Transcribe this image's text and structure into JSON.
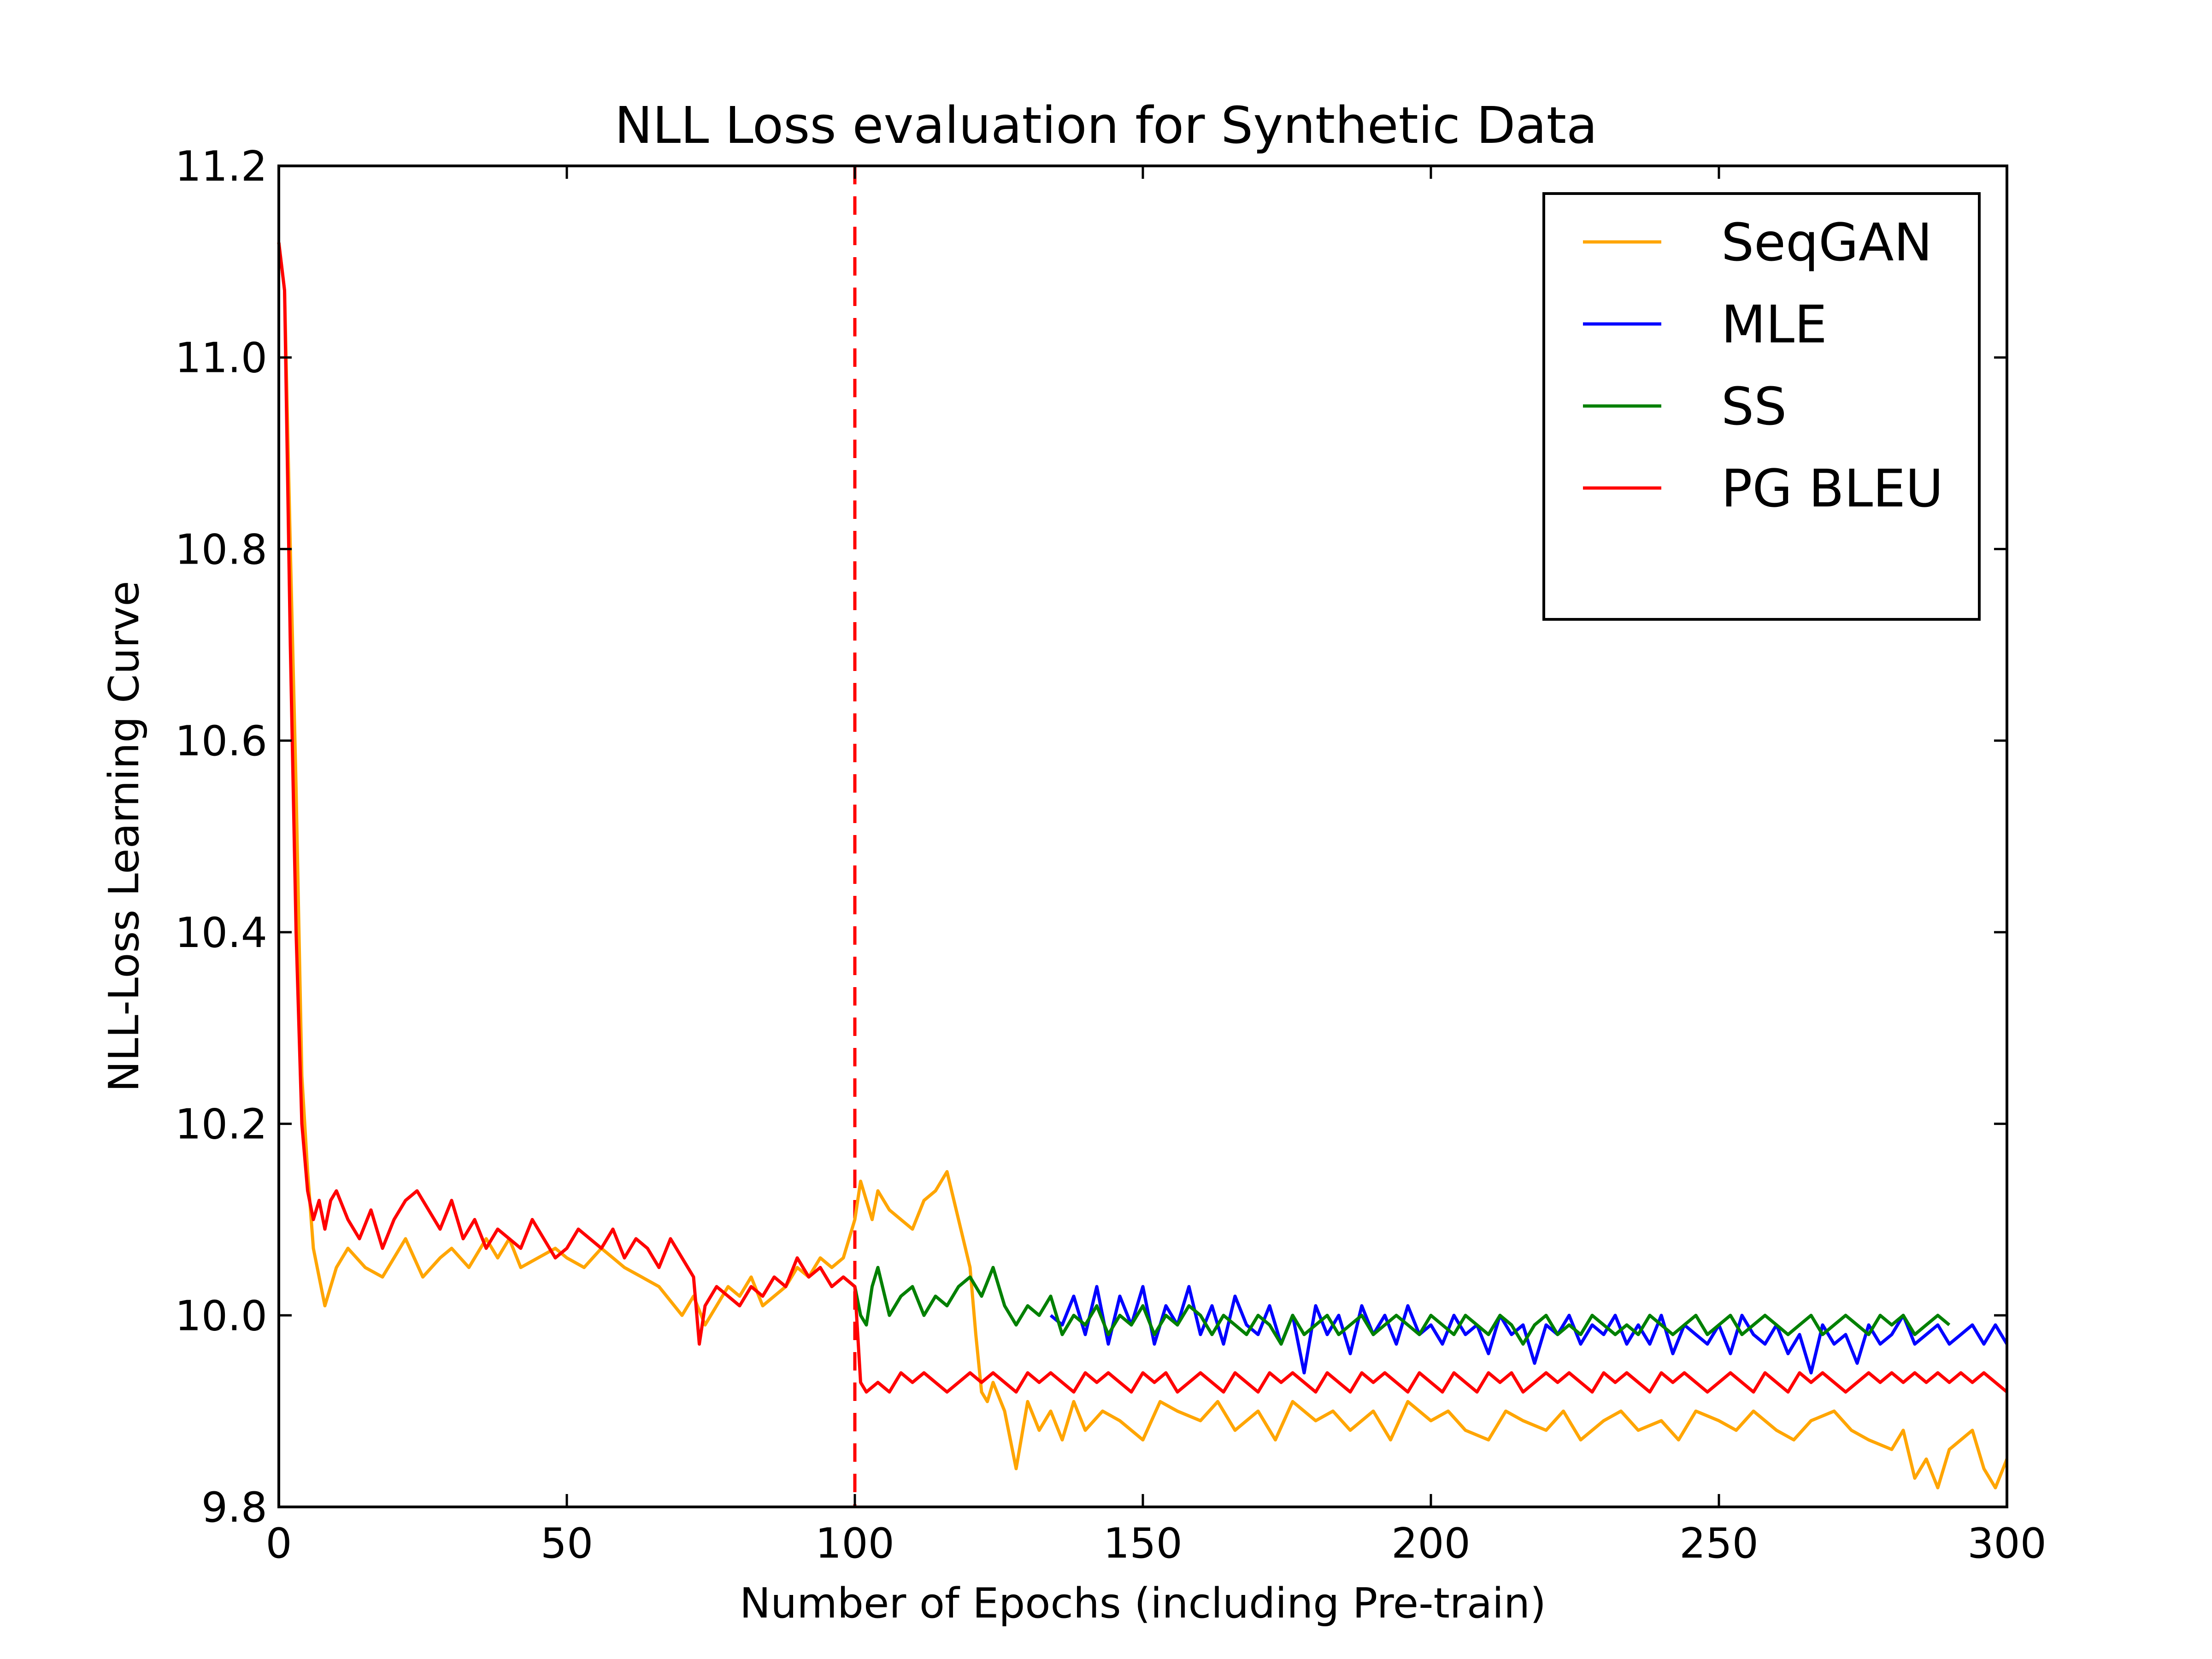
{
  "chart_data": {
    "type": "line",
    "title": "NLL Loss evaluation for Synthetic Data",
    "xlabel": "Number of Epochs (including Pre-train)",
    "ylabel": "NLL-Loss Learning Curve",
    "xlim": [
      0,
      300
    ],
    "ylim": [
      9.8,
      11.2
    ],
    "xticks": [
      0,
      50,
      100,
      150,
      200,
      250,
      300
    ],
    "xtick_labels": [
      "0",
      "50",
      "100",
      "150",
      "200",
      "250",
      "300"
    ],
    "yticks": [
      9.8,
      10.0,
      10.2,
      10.4,
      10.6,
      10.8,
      11.0,
      11.2
    ],
    "ytick_labels": [
      "9.8",
      "10.0",
      "10.2",
      "10.4",
      "10.6",
      "10.8",
      "11.0",
      "11.2"
    ],
    "grid": false,
    "legend_position": "top-right",
    "vline": {
      "x": 100,
      "color": "#ff0000",
      "style": "dashed"
    },
    "series": [
      {
        "name": "SeqGAN",
        "color": "#ffa500",
        "x": [
          0,
          1,
          2,
          3,
          4,
          5,
          6,
          8,
          10,
          12,
          15,
          18,
          20,
          22,
          25,
          28,
          30,
          33,
          36,
          38,
          40,
          42,
          45,
          48,
          50,
          53,
          56,
          58,
          60,
          63,
          66,
          70,
          72,
          74,
          76,
          78,
          80,
          82,
          84,
          86,
          88,
          90,
          92,
          94,
          96,
          98,
          100,
          101,
          102,
          103,
          104,
          106,
          108,
          110,
          112,
          114,
          116,
          118,
          120,
          121,
          122,
          123,
          124,
          126,
          128,
          130,
          132,
          134,
          136,
          138,
          140,
          143,
          146,
          150,
          153,
          156,
          160,
          163,
          166,
          170,
          173,
          176,
          180,
          183,
          186,
          190,
          193,
          196,
          200,
          203,
          206,
          210,
          213,
          216,
          220,
          223,
          226,
          230,
          233,
          236,
          240,
          243,
          246,
          250,
          253,
          256,
          260,
          263,
          266,
          270,
          273,
          276,
          280,
          282,
          284,
          286,
          288,
          290,
          292,
          294,
          296,
          298,
          300
        ],
        "values": [
          11.12,
          11.07,
          10.8,
          10.55,
          10.25,
          10.15,
          10.07,
          10.01,
          10.05,
          10.07,
          10.05,
          10.04,
          10.06,
          10.08,
          10.04,
          10.06,
          10.07,
          10.05,
          10.08,
          10.06,
          10.08,
          10.05,
          10.06,
          10.07,
          10.06,
          10.05,
          10.07,
          10.06,
          10.05,
          10.04,
          10.03,
          10.0,
          10.02,
          9.99,
          10.01,
          10.03,
          10.02,
          10.04,
          10.01,
          10.02,
          10.03,
          10.05,
          10.04,
          10.06,
          10.05,
          10.06,
          10.1,
          10.14,
          10.12,
          10.1,
          10.13,
          10.11,
          10.1,
          10.09,
          10.12,
          10.13,
          10.15,
          10.1,
          10.05,
          9.98,
          9.92,
          9.91,
          9.93,
          9.9,
          9.84,
          9.91,
          9.88,
          9.9,
          9.87,
          9.91,
          9.88,
          9.9,
          9.89,
          9.87,
          9.91,
          9.9,
          9.89,
          9.91,
          9.88,
          9.9,
          9.87,
          9.91,
          9.89,
          9.9,
          9.88,
          9.9,
          9.87,
          9.91,
          9.89,
          9.9,
          9.88,
          9.87,
          9.9,
          9.89,
          9.88,
          9.9,
          9.87,
          9.89,
          9.9,
          9.88,
          9.89,
          9.87,
          9.9,
          9.89,
          9.88,
          9.9,
          9.88,
          9.87,
          9.89,
          9.9,
          9.88,
          9.87,
          9.86,
          9.88,
          9.83,
          9.85,
          9.82,
          9.86,
          9.87,
          9.88,
          9.84,
          9.82,
          9.85
        ]
      },
      {
        "name": "MLE",
        "color": "#0000ff",
        "x": [
          134,
          136,
          138,
          140,
          142,
          144,
          146,
          148,
          150,
          152,
          154,
          156,
          158,
          160,
          162,
          164,
          166,
          168,
          170,
          172,
          174,
          176,
          178,
          180,
          182,
          184,
          186,
          188,
          190,
          192,
          194,
          196,
          198,
          200,
          202,
          204,
          206,
          208,
          210,
          212,
          214,
          216,
          218,
          220,
          222,
          224,
          226,
          228,
          230,
          232,
          234,
          236,
          238,
          240,
          242,
          244,
          246,
          248,
          250,
          252,
          254,
          256,
          258,
          260,
          262,
          264,
          266,
          268,
          270,
          272,
          274,
          276,
          278,
          280,
          282,
          284,
          286,
          288,
          290,
          292,
          294,
          296,
          298,
          300
        ],
        "values": [
          10.0,
          9.99,
          10.02,
          9.98,
          10.03,
          9.97,
          10.02,
          9.99,
          10.03,
          9.97,
          10.01,
          9.99,
          10.03,
          9.98,
          10.01,
          9.97,
          10.02,
          9.99,
          9.98,
          10.01,
          9.97,
          10.0,
          9.94,
          10.01,
          9.98,
          10.0,
          9.96,
          10.01,
          9.98,
          10.0,
          9.97,
          10.01,
          9.98,
          9.99,
          9.97,
          10.0,
          9.98,
          9.99,
          9.96,
          10.0,
          9.98,
          9.99,
          9.95,
          9.99,
          9.98,
          10.0,
          9.97,
          9.99,
          9.98,
          10.0,
          9.97,
          9.99,
          9.97,
          10.0,
          9.96,
          9.99,
          9.98,
          9.97,
          9.99,
          9.96,
          10.0,
          9.98,
          9.97,
          9.99,
          9.96,
          9.98,
          9.94,
          9.99,
          9.97,
          9.98,
          9.95,
          9.99,
          9.97,
          9.98,
          10.0,
          9.97,
          9.98,
          9.99,
          9.97,
          9.98,
          9.99,
          9.97,
          9.99,
          9.97
        ]
      },
      {
        "name": "SS",
        "color": "#008000",
        "x": [
          98,
          100,
          101,
          102,
          103,
          104,
          106,
          108,
          110,
          112,
          114,
          116,
          118,
          120,
          122,
          124,
          126,
          128,
          130,
          132,
          134,
          136,
          138,
          140,
          142,
          144,
          146,
          148,
          150,
          152,
          154,
          156,
          158,
          160,
          162,
          164,
          166,
          168,
          170,
          172,
          174,
          176,
          178,
          180,
          182,
          184,
          186,
          188,
          190,
          192,
          194,
          196,
          198,
          200,
          202,
          204,
          206,
          208,
          210,
          212,
          214,
          216,
          218,
          220,
          222,
          224,
          226,
          228,
          230,
          232,
          234,
          236,
          238,
          240,
          242,
          244,
          246,
          248,
          250,
          252,
          254,
          256,
          258,
          260,
          262,
          264,
          266,
          268,
          270,
          272,
          274,
          276,
          278,
          280,
          282,
          284,
          286,
          288,
          290
        ],
        "values": [
          10.04,
          10.03,
          10.0,
          9.99,
          10.03,
          10.05,
          10.0,
          10.02,
          10.03,
          10.0,
          10.02,
          10.01,
          10.03,
          10.04,
          10.02,
          10.05,
          10.01,
          9.99,
          10.01,
          10.0,
          10.02,
          9.98,
          10.0,
          9.99,
          10.01,
          9.98,
          10.0,
          9.99,
          10.01,
          9.98,
          10.0,
          9.99,
          10.01,
          10.0,
          9.98,
          10.0,
          9.99,
          9.98,
          10.0,
          9.99,
          9.97,
          10.0,
          9.98,
          9.99,
          10.0,
          9.98,
          9.99,
          10.0,
          9.98,
          9.99,
          10.0,
          9.99,
          9.98,
          10.0,
          9.99,
          9.98,
          10.0,
          9.99,
          9.98,
          10.0,
          9.99,
          9.97,
          9.99,
          10.0,
          9.98,
          9.99,
          9.98,
          10.0,
          9.99,
          9.98,
          9.99,
          9.98,
          10.0,
          9.99,
          9.98,
          9.99,
          10.0,
          9.98,
          9.99,
          10.0,
          9.98,
          9.99,
          10.0,
          9.99,
          9.98,
          9.99,
          10.0,
          9.98,
          9.99,
          10.0,
          9.99,
          9.98,
          10.0,
          9.99,
          10.0,
          9.98,
          9.99,
          10.0,
          9.99
        ]
      },
      {
        "name": "PG BLEU",
        "color": "#ff0000",
        "x": [
          0,
          1,
          2,
          3,
          4,
          5,
          6,
          7,
          8,
          9,
          10,
          12,
          14,
          16,
          18,
          20,
          22,
          24,
          26,
          28,
          30,
          32,
          34,
          36,
          38,
          40,
          42,
          44,
          46,
          48,
          50,
          52,
          54,
          56,
          58,
          60,
          62,
          64,
          66,
          68,
          70,
          72,
          73,
          74,
          76,
          78,
          80,
          82,
          84,
          86,
          88,
          90,
          92,
          94,
          96,
          98,
          100,
          101,
          102,
          104,
          106,
          108,
          110,
          112,
          114,
          116,
          118,
          120,
          122,
          124,
          126,
          128,
          130,
          132,
          134,
          136,
          138,
          140,
          142,
          144,
          146,
          148,
          150,
          152,
          154,
          156,
          158,
          160,
          162,
          164,
          166,
          168,
          170,
          172,
          174,
          176,
          178,
          180,
          182,
          184,
          186,
          188,
          190,
          192,
          194,
          196,
          198,
          200,
          202,
          204,
          206,
          208,
          210,
          212,
          214,
          216,
          218,
          220,
          222,
          224,
          226,
          228,
          230,
          232,
          234,
          236,
          238,
          240,
          242,
          244,
          246,
          248,
          250,
          252,
          254,
          256,
          258,
          260,
          262,
          264,
          266,
          268,
          270,
          272,
          274,
          276,
          278,
          280,
          282,
          284,
          286,
          288,
          290,
          292,
          294,
          296,
          298,
          300
        ],
        "values": [
          11.12,
          11.07,
          10.7,
          10.4,
          10.2,
          10.13,
          10.1,
          10.12,
          10.09,
          10.12,
          10.13,
          10.1,
          10.08,
          10.11,
          10.07,
          10.1,
          10.12,
          10.13,
          10.11,
          10.09,
          10.12,
          10.08,
          10.1,
          10.07,
          10.09,
          10.08,
          10.07,
          10.1,
          10.08,
          10.06,
          10.07,
          10.09,
          10.08,
          10.07,
          10.09,
          10.06,
          10.08,
          10.07,
          10.05,
          10.08,
          10.06,
          10.04,
          9.97,
          10.01,
          10.03,
          10.02,
          10.01,
          10.03,
          10.02,
          10.04,
          10.03,
          10.06,
          10.04,
          10.05,
          10.03,
          10.04,
          10.03,
          9.93,
          9.92,
          9.93,
          9.92,
          9.94,
          9.93,
          9.94,
          9.93,
          9.92,
          9.93,
          9.94,
          9.93,
          9.94,
          9.93,
          9.92,
          9.94,
          9.93,
          9.94,
          9.93,
          9.92,
          9.94,
          9.93,
          9.94,
          9.93,
          9.92,
          9.94,
          9.93,
          9.94,
          9.92,
          9.93,
          9.94,
          9.93,
          9.92,
          9.94,
          9.93,
          9.92,
          9.94,
          9.93,
          9.94,
          9.93,
          9.92,
          9.94,
          9.93,
          9.92,
          9.94,
          9.93,
          9.94,
          9.93,
          9.92,
          9.94,
          9.93,
          9.92,
          9.94,
          9.93,
          9.92,
          9.94,
          9.93,
          9.94,
          9.92,
          9.93,
          9.94,
          9.93,
          9.94,
          9.93,
          9.92,
          9.94,
          9.93,
          9.94,
          9.93,
          9.92,
          9.94,
          9.93,
          9.94,
          9.93,
          9.92,
          9.93,
          9.94,
          9.93,
          9.92,
          9.94,
          9.93,
          9.92,
          9.94,
          9.93,
          9.94,
          9.93,
          9.92,
          9.93,
          9.94,
          9.93,
          9.94,
          9.93,
          9.94,
          9.93,
          9.94,
          9.93,
          9.94,
          9.93,
          9.94,
          9.93,
          9.92
        ]
      }
    ]
  }
}
